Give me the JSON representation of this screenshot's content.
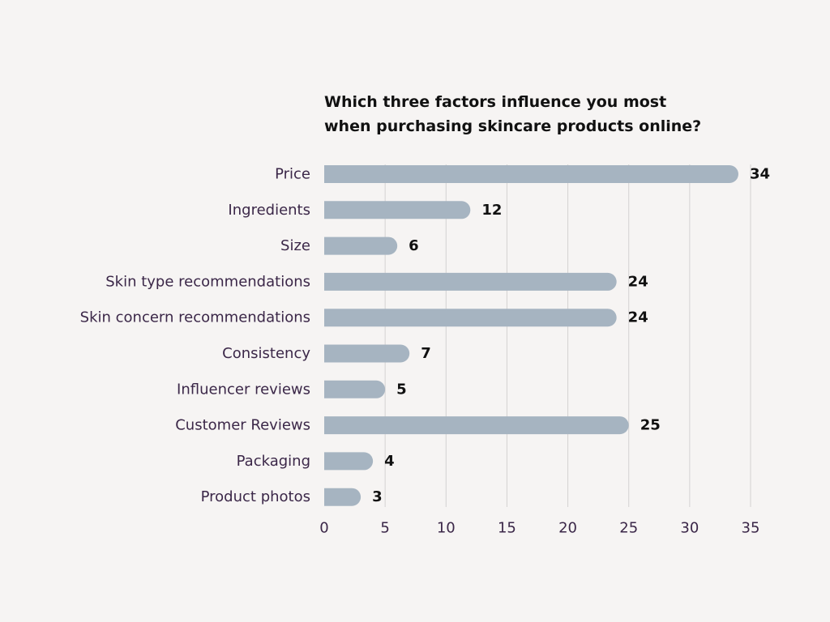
{
  "chart_data": {
    "type": "bar",
    "orientation": "horizontal",
    "title_lines": [
      "Which three factors influence you most",
      "when purchasing skincare products online?"
    ],
    "categories": [
      "Price",
      "Ingredients",
      "Size",
      "Skin type recommendations",
      "Skin concern recommendations",
      "Consistency",
      "Influencer reviews",
      "Customer Reviews",
      "Packaging",
      "Product photos"
    ],
    "values": [
      34,
      12,
      6,
      24,
      24,
      7,
      5,
      25,
      4,
      3
    ],
    "xlim": [
      0,
      35
    ],
    "xticks": [
      0,
      5,
      10,
      15,
      20,
      25,
      30,
      35
    ],
    "grid": true,
    "xlabel": "",
    "ylabel": "",
    "colors": {
      "bar": "#a6b4c1",
      "grid": "#d4d2d2",
      "category_label": "#3b2748",
      "tick_label": "#3b2748",
      "value_label": "#111111",
      "background": "#f6f4f3"
    }
  }
}
